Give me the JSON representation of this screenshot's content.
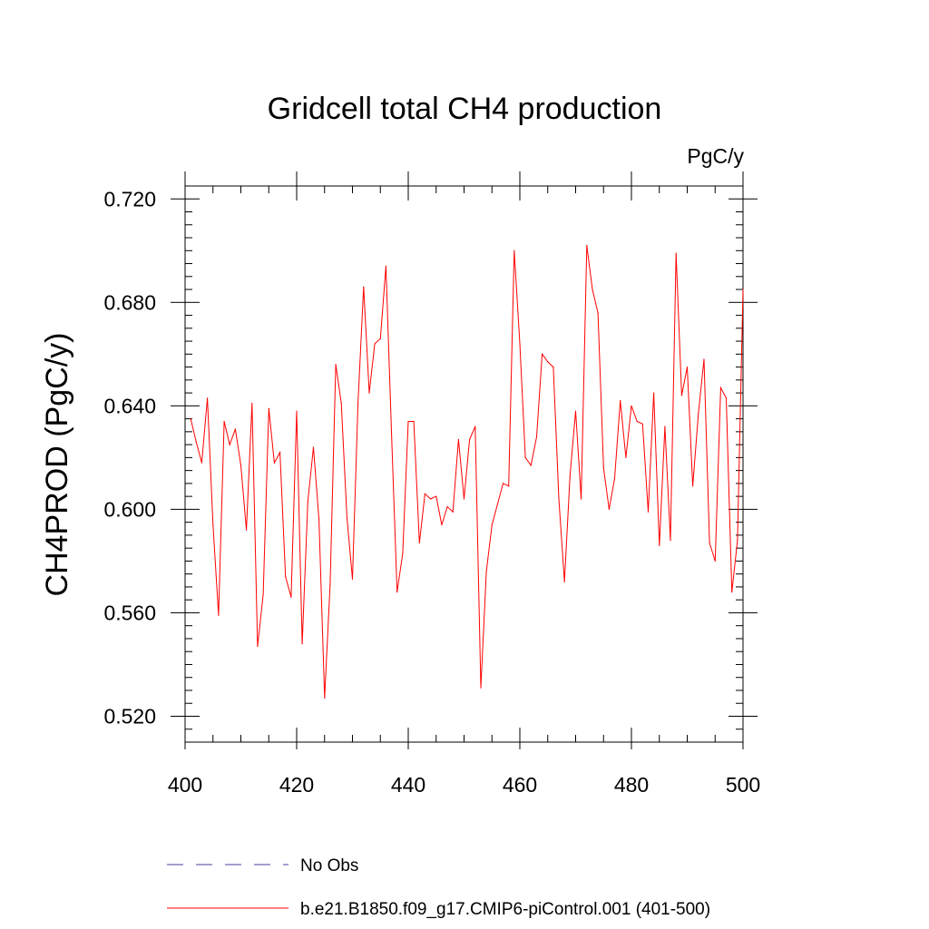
{
  "chart_data": {
    "type": "line",
    "title": "Gridcell total CH4 production",
    "units_label": "PgC/y",
    "ylabel": "CH4PROD  (PgC/y)",
    "xlabel": "",
    "xlim": [
      400,
      500
    ],
    "ylim": [
      0.51,
      0.725
    ],
    "x_ticks": [
      400,
      420,
      440,
      460,
      480,
      500
    ],
    "x_tick_labels": [
      "400",
      "420",
      "440",
      "460",
      "480",
      "500"
    ],
    "y_ticks": [
      0.52,
      0.56,
      0.6,
      0.64,
      0.68,
      0.72
    ],
    "y_tick_labels": [
      "0.520",
      "0.560",
      "0.600",
      "0.640",
      "0.680",
      "0.720"
    ],
    "grid": false,
    "legend_position": "bottom",
    "series": [
      {
        "name": "b.e21.B1850.f09_g17.CMIP6-piControl.001 (401-500)",
        "color": "#ff0000",
        "style": "solid",
        "x": [
          401,
          402,
          403,
          404,
          405,
          406,
          407,
          408,
          409,
          410,
          411,
          412,
          413,
          414,
          415,
          416,
          417,
          418,
          419,
          420,
          421,
          422,
          423,
          424,
          425,
          426,
          427,
          428,
          429,
          430,
          431,
          432,
          433,
          434,
          435,
          436,
          437,
          438,
          439,
          440,
          441,
          442,
          443,
          444,
          445,
          446,
          447,
          448,
          449,
          450,
          451,
          452,
          453,
          454,
          455,
          456,
          457,
          458,
          459,
          460,
          461,
          462,
          463,
          464,
          465,
          466,
          467,
          468,
          469,
          470,
          471,
          472,
          473,
          474,
          475,
          476,
          477,
          478,
          479,
          480,
          481,
          482,
          483,
          484,
          485,
          486,
          487,
          488,
          489,
          490,
          491,
          492,
          493,
          494,
          495,
          496,
          497,
          498,
          499,
          500
        ],
        "values": [
          0.635,
          0.626,
          0.618,
          0.643,
          0.594,
          0.559,
          0.634,
          0.625,
          0.631,
          0.617,
          0.592,
          0.641,
          0.547,
          0.567,
          0.639,
          0.618,
          0.622,
          0.574,
          0.566,
          0.638,
          0.548,
          0.603,
          0.624,
          0.596,
          0.527,
          0.571,
          0.656,
          0.641,
          0.597,
          0.573,
          0.641,
          0.686,
          0.645,
          0.664,
          0.666,
          0.694,
          0.629,
          0.568,
          0.583,
          0.634,
          0.634,
          0.587,
          0.606,
          0.604,
          0.605,
          0.594,
          0.601,
          0.599,
          0.627,
          0.604,
          0.627,
          0.632,
          0.531,
          0.576,
          0.594,
          0.602,
          0.61,
          0.609,
          0.7,
          0.664,
          0.62,
          0.617,
          0.628,
          0.66,
          0.657,
          0.655,
          0.604,
          0.572,
          0.613,
          0.638,
          0.604,
          0.702,
          0.685,
          0.676,
          0.616,
          0.6,
          0.612,
          0.642,
          0.62,
          0.64,
          0.634,
          0.633,
          0.599,
          0.645,
          0.586,
          0.632,
          0.588,
          0.699,
          0.644,
          0.655,
          0.609,
          0.637,
          0.658,
          0.587,
          0.58,
          0.647,
          0.643,
          0.568,
          0.588,
          0.685
        ]
      }
    ],
    "legend": [
      {
        "label": "No Obs",
        "color": "#4b3fa0",
        "style": "dashed"
      },
      {
        "label": "b.e21.B1850.f09_g17.CMIP6-piControl.001 (401-500)",
        "color": "#ff0000",
        "style": "solid"
      }
    ]
  }
}
